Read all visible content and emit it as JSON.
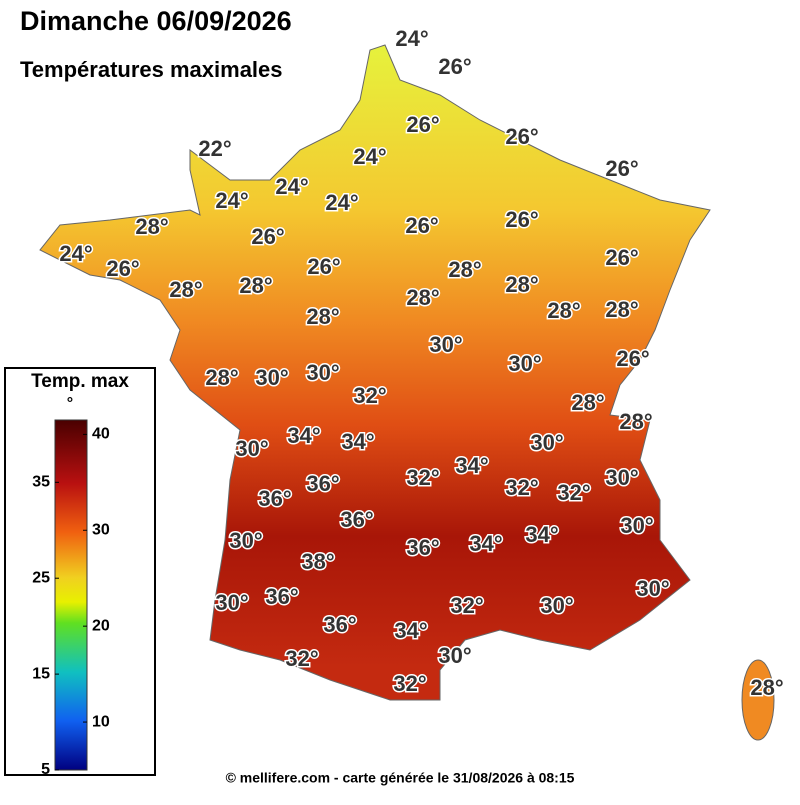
{
  "header": {
    "title": "Dimanche 06/09/2026",
    "subtitle": "Températures maximales"
  },
  "legend": {
    "title": "Temp. max",
    "unit": "°",
    "lim": [
      5,
      41.5
    ],
    "ticks": [
      5,
      10,
      15,
      20,
      25,
      30,
      35,
      40
    ]
  },
  "map_labels": [
    "24°",
    "26°",
    "22°",
    "26°",
    "26°",
    "24°",
    "24°",
    "24°",
    "24°",
    "26°",
    "28°",
    "26°",
    "26°",
    "26°",
    "24°",
    "26°",
    "26°",
    "28°",
    "28°",
    "26°",
    "28°",
    "28°",
    "28°",
    "28°",
    "28°",
    "28°",
    "30°",
    "30°",
    "26°",
    "28°",
    "30°",
    "30°",
    "32°",
    "28°",
    "28°",
    "30°",
    "34°",
    "34°",
    "30°",
    "32°",
    "34°",
    "36°",
    "36°",
    "32°",
    "32°",
    "30°",
    "36°",
    "30°",
    "30°",
    "38°",
    "36°",
    "34°",
    "34°",
    "30°",
    "36°",
    "32°",
    "30°",
    "30°",
    "36°",
    "34°",
    "32°",
    "30°",
    "32°",
    "28°"
  ],
  "footer": "© mellifere.com - carte générée le 31/08/2026 à 08:15"
}
